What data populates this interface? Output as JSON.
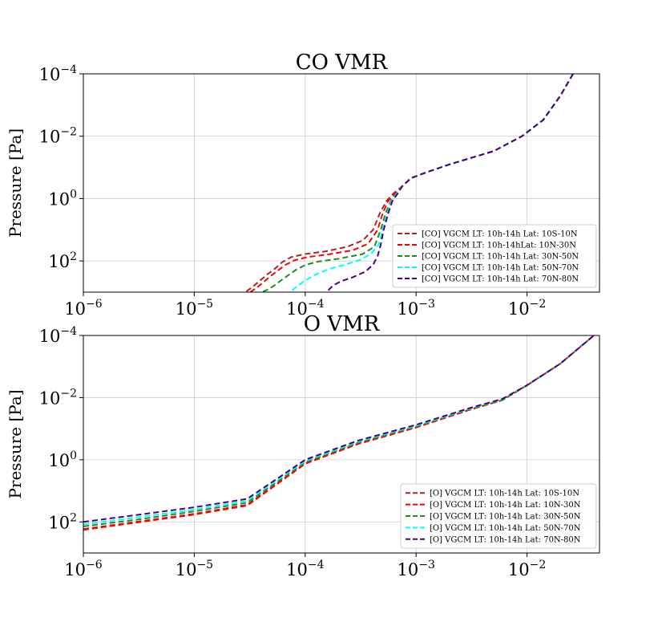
{
  "chart_data": [
    {
      "type": "line",
      "title": "CO VMR",
      "xlabel": "",
      "ylabel": "Pressure [Pa]",
      "xscale": "log",
      "yscale": "log",
      "xlim": [
        1e-06,
        0.045
      ],
      "ylim": [
        1000,
        0.0001
      ],
      "x_tick_labels": [
        {
          "base": "10",
          "exp": "−6"
        },
        {
          "base": "10",
          "exp": "−5"
        },
        {
          "base": "10",
          "exp": "−4"
        },
        {
          "base": "10",
          "exp": "−3"
        },
        {
          "base": "10",
          "exp": "−2"
        }
      ],
      "y_tick_labels": [
        {
          "base": "10",
          "exp": "−4"
        },
        {
          "base": "10",
          "exp": "−2"
        },
        {
          "base": "10",
          "exp": "0"
        },
        {
          "base": "10",
          "exp": "2"
        }
      ],
      "legend_position": "lower right",
      "series": [
        {
          "name": "[CO] VGCM LT: 10h-14h Lat: 10S-10N",
          "color": "#b22222",
          "x": [
            0.026,
            0.02,
            0.014,
            0.009,
            0.005,
            0.002,
            0.0012,
            0.0009,
            0.00075,
            0.00062,
            0.00054,
            0.00047,
            0.00041,
            0.00033,
            0.00024,
            0.00015,
            0.0001,
            7.5e-05,
            6.2e-05,
            5.3e-05,
            4.5e-05,
            4e-05,
            3.4e-05,
            2.9e-05
          ],
          "y": [
            0.0001,
            0.0005,
            0.003,
            0.01,
            0.03,
            0.08,
            0.15,
            0.22,
            0.4,
            0.7,
            1.2,
            3,
            10,
            22,
            35,
            50,
            60,
            75,
            110,
            180,
            280,
            400,
            650,
            1000
          ]
        },
        {
          "name": "[CO] VGCM LT: 10h-14hLat: 10N-30N",
          "color": "#ff0000",
          "x": [
            0.026,
            0.02,
            0.014,
            0.009,
            0.005,
            0.002,
            0.0012,
            0.0009,
            0.00075,
            0.00064,
            0.00056,
            0.0005,
            0.00045,
            0.00037,
            0.00027,
            0.00016,
            0.000105,
            8e-05,
            6.6e-05,
            5.6e-05,
            4.8e-05,
            4.3e-05,
            3.7e-05,
            3.2e-05
          ],
          "y": [
            0.0001,
            0.0005,
            0.003,
            0.01,
            0.03,
            0.08,
            0.15,
            0.22,
            0.4,
            0.7,
            1.2,
            3,
            10,
            28,
            45,
            62,
            75,
            95,
            135,
            210,
            320,
            450,
            700,
            1000
          ]
        },
        {
          "name": "[CO] VGCM LT: 10h-14h Lat: 30N-50N",
          "color": "#228b22",
          "x": [
            0.026,
            0.02,
            0.014,
            0.009,
            0.005,
            0.002,
            0.0012,
            0.0009,
            0.00075,
            0.00066,
            0.00059,
            0.00053,
            0.00048,
            0.00042,
            0.00033,
            0.0002,
            0.00013,
            0.0001,
            8.3e-05,
            7e-05,
            6e-05,
            5.3e-05,
            4.7e-05,
            4.1e-05
          ],
          "y": [
            0.0001,
            0.0005,
            0.003,
            0.01,
            0.03,
            0.08,
            0.15,
            0.22,
            0.4,
            0.7,
            1.2,
            3,
            10,
            35,
            60,
            85,
            105,
            135,
            190,
            290,
            430,
            600,
            800,
            1000
          ]
        },
        {
          "name": "[CO] VGCM LT: 10h-14h Lat: 50N-70N",
          "color": "#00ffff",
          "x": [
            0.026,
            0.02,
            0.014,
            0.009,
            0.005,
            0.002,
            0.0012,
            0.0009,
            0.00075,
            0.00067,
            0.0006,
            0.00055,
            0.0005,
            0.00046,
            0.0004,
            0.00032,
            0.00023,
            0.000165,
            0.000125,
            0.0001,
            8.6e-05,
            7.8e-05,
            7.3e-05
          ],
          "y": [
            0.0001,
            0.0005,
            0.003,
            0.01,
            0.03,
            0.08,
            0.15,
            0.22,
            0.4,
            0.7,
            1.2,
            3,
            10,
            30,
            55,
            90,
            130,
            180,
            270,
            420,
            620,
            820,
            1000
          ]
        },
        {
          "name": "[CO] VGCM LT: 10h-14h Lat: 70N-80N",
          "color": "#4b0082",
          "x": [
            0.026,
            0.02,
            0.014,
            0.009,
            0.005,
            0.002,
            0.0012,
            0.0009,
            0.00075,
            0.00068,
            0.00061,
            0.00056,
            0.00051,
            0.00048,
            0.00045,
            0.00041,
            0.00035,
            0.00027,
            0.00021,
            0.00018,
            0.000165,
            0.00016
          ],
          "y": [
            0.0001,
            0.0005,
            0.003,
            0.01,
            0.03,
            0.08,
            0.15,
            0.22,
            0.4,
            0.7,
            1.2,
            3,
            10,
            30,
            70,
            130,
            220,
            330,
            450,
            600,
            800,
            1000
          ]
        }
      ]
    },
    {
      "type": "line",
      "title": "O VMR",
      "xlabel": "",
      "ylabel": "Pressure [Pa]",
      "xscale": "log",
      "yscale": "log",
      "xlim": [
        1e-06,
        0.045
      ],
      "ylim": [
        1000,
        0.0001
      ],
      "x_tick_labels": [
        {
          "base": "10",
          "exp": "−6"
        },
        {
          "base": "10",
          "exp": "−5"
        },
        {
          "base": "10",
          "exp": "−4"
        },
        {
          "base": "10",
          "exp": "−3"
        },
        {
          "base": "10",
          "exp": "−2"
        }
      ],
      "y_tick_labels": [
        {
          "base": "10",
          "exp": "−4"
        },
        {
          "base": "10",
          "exp": "−2"
        },
        {
          "base": "10",
          "exp": "0"
        },
        {
          "base": "10",
          "exp": "2"
        }
      ],
      "legend_position": "lower right",
      "series": [
        {
          "name": "[O] VGCM LT: 10h-14h Lat: 10S-10N",
          "color": "#b22222",
          "x": [
            1e-06,
            3e-06,
            1e-05,
            3e-05,
            0.0001,
            0.0003,
            0.001,
            0.003,
            0.006,
            0.01,
            0.02,
            0.04
          ],
          "y": [
            170,
            100,
            55,
            28,
            1.3,
            0.3,
            0.09,
            0.025,
            0.012,
            0.004,
            0.0008,
            0.0001
          ]
        },
        {
          "name": "[O] VGCM LT: 10h-14h Lat: 10N-30N",
          "color": "#ff0000",
          "x": [
            1e-06,
            3e-06,
            1e-05,
            3e-05,
            0.0001,
            0.0003,
            0.001,
            0.003,
            0.006,
            0.01,
            0.02,
            0.04
          ],
          "y": [
            180,
            105,
            58,
            30,
            1.35,
            0.31,
            0.092,
            0.025,
            0.012,
            0.004,
            0.0008,
            0.0001
          ]
        },
        {
          "name": "[O] VGCM LT: 10h-14h Lat: 30N-50N",
          "color": "#228b22",
          "x": [
            1e-06,
            3e-06,
            1e-05,
            3e-05,
            0.0001,
            0.0003,
            0.001,
            0.003,
            0.006,
            0.01,
            0.02,
            0.04
          ],
          "y": [
            140,
            85,
            46,
            24,
            1.2,
            0.28,
            0.085,
            0.024,
            0.012,
            0.004,
            0.0008,
            0.0001
          ]
        },
        {
          "name": "[O] VGCM LT: 10h-14h Lat: 50N-70N",
          "color": "#00ffff",
          "x": [
            1e-06,
            3e-06,
            1e-05,
            3e-05,
            0.0001,
            0.0003,
            0.001,
            0.003,
            0.006,
            0.01,
            0.02,
            0.04
          ],
          "y": [
            120,
            72,
            40,
            21,
            1.1,
            0.26,
            0.08,
            0.023,
            0.011,
            0.004,
            0.0008,
            0.0001
          ]
        },
        {
          "name": "[O] VGCM LT: 10h-14h Lat: 70N-80N",
          "color": "#4b0082",
          "x": [
            1e-06,
            3e-06,
            1e-05,
            3e-05,
            0.0001,
            0.0003,
            0.001,
            0.003,
            0.006,
            0.01,
            0.02,
            0.04
          ],
          "y": [
            100,
            60,
            34,
            18,
            1.0,
            0.24,
            0.075,
            0.022,
            0.011,
            0.004,
            0.0008,
            0.0001
          ]
        }
      ]
    }
  ]
}
